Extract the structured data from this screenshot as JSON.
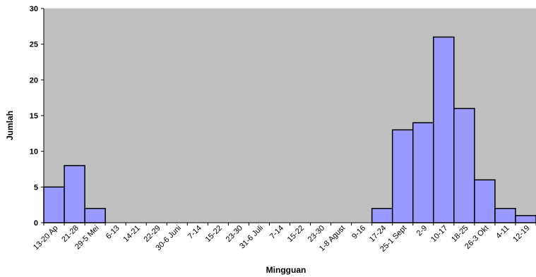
{
  "colors": {
    "plot_background": "#c0c0c0",
    "bar_fill": "#9999ff",
    "bar_stroke": "#000000",
    "axis": "#000000"
  },
  "chart_data": {
    "type": "bar",
    "title": "",
    "xlabel": "Mingguan",
    "ylabel": "Jumlah",
    "ylim": [
      0,
      30
    ],
    "yticks": [
      0,
      5,
      10,
      15,
      20,
      25,
      30
    ],
    "grid": false,
    "legend": "none",
    "categories": [
      "13-20 Ap",
      "21-28",
      "29-5 Mei",
      "6-13",
      "14-21",
      "22-29",
      "30-6 Juni",
      "7-14",
      "15-22",
      "23-30",
      "31-6 Juli",
      "7-14",
      "15-22",
      "23-30",
      "1-8 Agust",
      "9-16",
      "17-24",
      "25-1 Sept",
      "2-9",
      "10-17",
      "18-25",
      "26-3 Okt",
      "4-11",
      "12-19"
    ],
    "values": [
      5,
      8,
      2,
      0,
      0,
      0,
      0,
      0,
      0,
      0,
      0,
      0,
      0,
      0,
      0,
      0,
      2,
      13,
      14,
      26,
      16,
      6,
      2,
      1
    ]
  }
}
